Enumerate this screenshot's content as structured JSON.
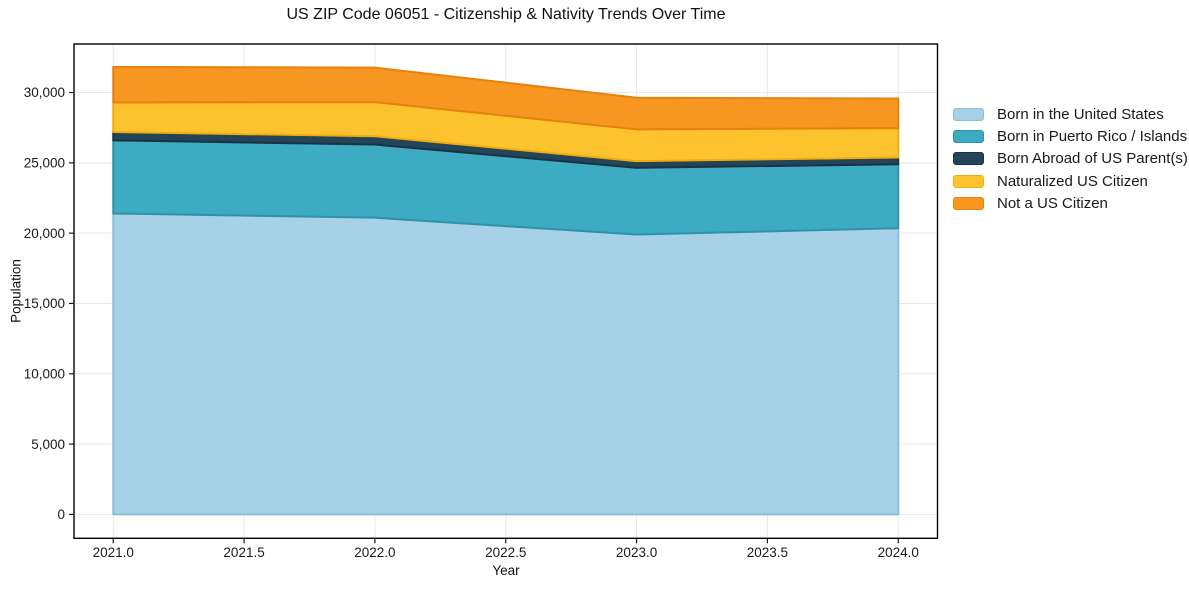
{
  "title": "US ZIP Code 06051 - Citizenship & Nativity Trends Over Time",
  "chart_data": {
    "type": "area",
    "stacked": true,
    "title": "US ZIP Code 06051 - Citizenship & Nativity Trends Over Time",
    "xlabel": "Year",
    "ylabel": "Population",
    "x": [
      2021,
      2022,
      2023,
      2024
    ],
    "series": [
      {
        "name": "Born in the United States",
        "color": "#a6d1e6",
        "edge": "#8bc0da",
        "values": [
          21400,
          21100,
          19900,
          20350
        ]
      },
      {
        "name": "Born in Puerto Rico / Islands",
        "color": "#3dabc2",
        "edge": "#2e93a8",
        "values": [
          5200,
          5200,
          4750,
          4550
        ]
      },
      {
        "name": "Born Abroad of US Parent(s)",
        "color": "#24445a",
        "edge": "#1a3344",
        "values": [
          590,
          590,
          470,
          480
        ]
      },
      {
        "name": "Naturalized US Citizen",
        "color": "#fdc32e",
        "edge": "#f0ad10",
        "values": [
          2100,
          2430,
          2260,
          2090
        ]
      },
      {
        "name": "Not a US Citizen",
        "color": "#f79621",
        "edge": "#e5830e",
        "values": [
          2530,
          2450,
          2250,
          2100
        ]
      }
    ],
    "x_ticks": [
      "2021.0",
      "2021.5",
      "2022.0",
      "2022.5",
      "2023.0",
      "2023.5",
      "2024.0"
    ],
    "x_tick_values": [
      2021,
      2021.5,
      2022,
      2022.5,
      2023,
      2023.5,
      2024
    ],
    "y_ticks": [
      "0",
      "5,000",
      "10,000",
      "15,000",
      "20,000",
      "25,000",
      "30,000"
    ],
    "y_tick_values": [
      0,
      5000,
      10000,
      15000,
      20000,
      25000,
      30000
    ],
    "xlim": [
      2020.85,
      2024.15
    ],
    "ylim": [
      -1700,
      33450
    ],
    "grid": true,
    "grid_color": "#e9e9e9",
    "spine_color": "#000000",
    "tick_color": "#1a1a1a",
    "legend_position": "right"
  }
}
